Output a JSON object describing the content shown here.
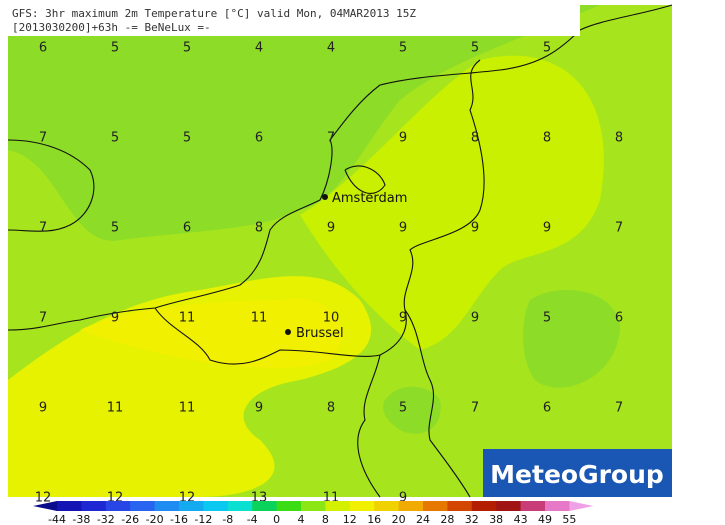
{
  "header": {
    "line1": "GFS: 3hr maximum 2m Temperature [°C] valid Mon, 04MAR2013 15Z",
    "line2": "[2013030200]+63h -= BeNeLux =-"
  },
  "grid_values": [
    [
      6,
      5,
      5,
      4,
      4,
      5,
      5,
      5,
      null
    ],
    [
      7,
      5,
      5,
      6,
      7,
      9,
      8,
      8,
      8
    ],
    [
      7,
      5,
      6,
      8,
      9,
      9,
      9,
      9,
      7
    ],
    [
      7,
      9,
      11,
      11,
      10,
      9,
      9,
      5,
      6
    ],
    [
      9,
      11,
      11,
      9,
      8,
      5,
      7,
      6,
      7
    ],
    [
      12,
      12,
      12,
      13,
      11,
      9,
      null,
      null,
      null
    ]
  ],
  "cities": [
    {
      "name": "Amsterdam"
    },
    {
      "name": "Brussel"
    }
  ],
  "logo": "MeteoGroup",
  "colorbar": {
    "labels": [
      -44,
      -38,
      -32,
      -26,
      -20,
      -16,
      -12,
      -8,
      -4,
      0,
      4,
      8,
      12,
      16,
      20,
      24,
      28,
      32,
      38,
      43,
      49,
      55
    ],
    "colors": [
      "#0a0a8c",
      "#1414b4",
      "#1e28d2",
      "#2846e6",
      "#2864f0",
      "#1e8cf0",
      "#14aaf0",
      "#0ac8f0",
      "#0ae0d2",
      "#0ad25a",
      "#3cdc14",
      "#8ce614",
      "#d2f000",
      "#f0f000",
      "#f0d200",
      "#f0aa00",
      "#e67800",
      "#d24600",
      "#b41e00",
      "#a01414",
      "#c83c78",
      "#e678c8",
      "#f0a0e6"
    ]
  }
}
